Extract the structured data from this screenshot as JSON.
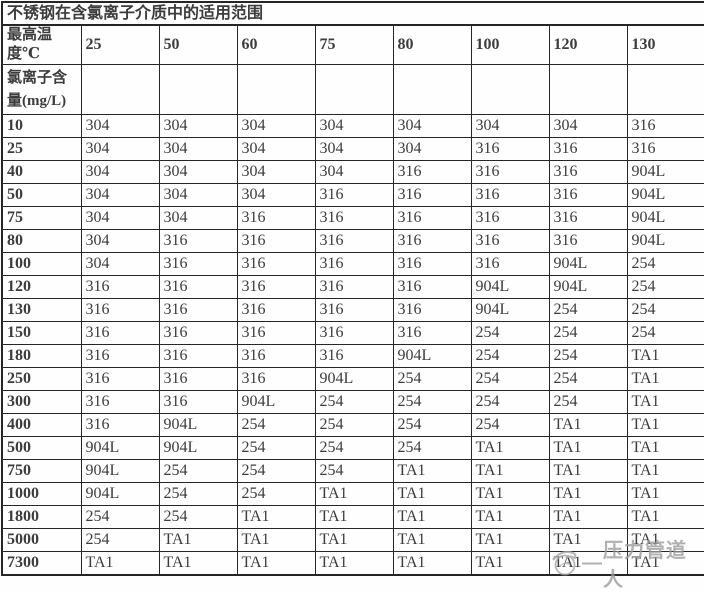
{
  "table": {
    "title": "不锈钢在含氯离子介质中的适用范围",
    "corner_header": {
      "line1": "最高温",
      "line2": "度℃"
    },
    "row_group_header": {
      "line1": "氯离子含",
      "line2": "量(mg/L)"
    },
    "temperature_headers": [
      "25",
      "50",
      "60",
      "75",
      "80",
      "100",
      "120",
      "130"
    ],
    "rows": [
      {
        "label": "10",
        "cells": [
          "304",
          "304",
          "304",
          "304",
          "304",
          "304",
          "304",
          "316"
        ]
      },
      {
        "label": "25",
        "cells": [
          "304",
          "304",
          "304",
          "304",
          "304",
          "316",
          "316",
          "316"
        ]
      },
      {
        "label": "40",
        "cells": [
          "304",
          "304",
          "304",
          "304",
          "316",
          "316",
          "316",
          "904L"
        ]
      },
      {
        "label": "50",
        "cells": [
          "304",
          "304",
          "304",
          "316",
          "316",
          "316",
          "316",
          "904L"
        ]
      },
      {
        "label": "75",
        "cells": [
          "304",
          "304",
          "316",
          "316",
          "316",
          "316",
          "316",
          "904L"
        ]
      },
      {
        "label": "80",
        "cells": [
          "304",
          "316",
          "316",
          "316",
          "316",
          "316",
          "316",
          "904L"
        ]
      },
      {
        "label": "100",
        "cells": [
          "304",
          "316",
          "316",
          "316",
          "316",
          "316",
          "904L",
          "254"
        ]
      },
      {
        "label": "120",
        "cells": [
          "316",
          "316",
          "316",
          "316",
          "316",
          "904L",
          "904L",
          "254"
        ]
      },
      {
        "label": "130",
        "cells": [
          "316",
          "316",
          "316",
          "316",
          "316",
          "904L",
          "254",
          "254"
        ]
      },
      {
        "label": "150",
        "cells": [
          "316",
          "316",
          "316",
          "316",
          "316",
          "254",
          "254",
          "254"
        ]
      },
      {
        "label": "180",
        "cells": [
          "316",
          "316",
          "316",
          "316",
          "904L",
          "254",
          "254",
          "TA1"
        ]
      },
      {
        "label": "250",
        "cells": [
          "316",
          "316",
          "316",
          "904L",
          "254",
          "254",
          "254",
          "TA1"
        ]
      },
      {
        "label": "300",
        "cells": [
          "316",
          "316",
          "904L",
          "254",
          "254",
          "254",
          "254",
          "TA1"
        ]
      },
      {
        "label": "400",
        "cells": [
          "316",
          "904L",
          "254",
          "254",
          "254",
          "254",
          "TA1",
          "TA1"
        ]
      },
      {
        "label": "500",
        "cells": [
          "904L",
          "904L",
          "254",
          "254",
          "254",
          "TA1",
          "TA1",
          "TA1"
        ]
      },
      {
        "label": "750",
        "cells": [
          "904L",
          "254",
          "254",
          "254",
          "TA1",
          "TA1",
          "TA1",
          "TA1"
        ]
      },
      {
        "label": "1000",
        "cells": [
          "904L",
          "254",
          "254",
          "TA1",
          "TA1",
          "TA1",
          "TA1",
          "TA1"
        ]
      },
      {
        "label": "1800",
        "cells": [
          "254",
          "254",
          "TA1",
          "TA1",
          "TA1",
          "TA1",
          "TA1",
          "TA1"
        ]
      },
      {
        "label": "5000",
        "cells": [
          "254",
          "TA1",
          "TA1",
          "TA1",
          "TA1",
          "TA1",
          "TA1",
          "TA1"
        ]
      },
      {
        "label": "7300",
        "cells": [
          "TA1",
          "TA1",
          "TA1",
          "TA1",
          "TA1",
          "TA1",
          "TA1",
          "TA1"
        ]
      }
    ]
  },
  "watermark": {
    "dash": "—",
    "text": "压力管道人",
    "icon": "swirl-stamp-icon"
  },
  "colors": {
    "text": "#3c3c3c",
    "border": "#262626",
    "bg": "#fefefe",
    "watermark": "#9b9b9b"
  }
}
